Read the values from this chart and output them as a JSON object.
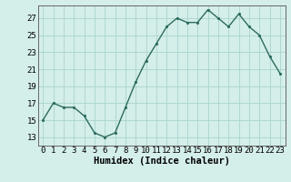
{
  "x": [
    0,
    1,
    2,
    3,
    4,
    5,
    6,
    7,
    8,
    9,
    10,
    11,
    12,
    13,
    14,
    15,
    16,
    17,
    18,
    19,
    20,
    21,
    22,
    23
  ],
  "y": [
    15,
    17,
    16.5,
    16.5,
    15.5,
    13.5,
    13,
    13.5,
    16.5,
    19.5,
    22,
    24,
    26,
    27,
    26.5,
    26.5,
    28,
    27,
    26,
    27.5,
    26,
    25,
    22.5,
    20.5
  ],
  "line_color": "#2d6b5e",
  "marker_color": "#2d6b5e",
  "bg_color": "#d4eeea",
  "grid_color": "#aad4ce",
  "xlabel": "Humidex (Indice chaleur)",
  "yticks": [
    13,
    15,
    17,
    19,
    21,
    23,
    25,
    27
  ],
  "xticks": [
    0,
    1,
    2,
    3,
    4,
    5,
    6,
    7,
    8,
    9,
    10,
    11,
    12,
    13,
    14,
    15,
    16,
    17,
    18,
    19,
    20,
    21,
    22,
    23
  ],
  "ylim": [
    12.0,
    28.5
  ],
  "xlim": [
    -0.5,
    23.5
  ],
  "tick_fontsize": 6.5,
  "xlabel_fontsize": 7.5,
  "marker_size": 2.5,
  "line_width": 1.0
}
